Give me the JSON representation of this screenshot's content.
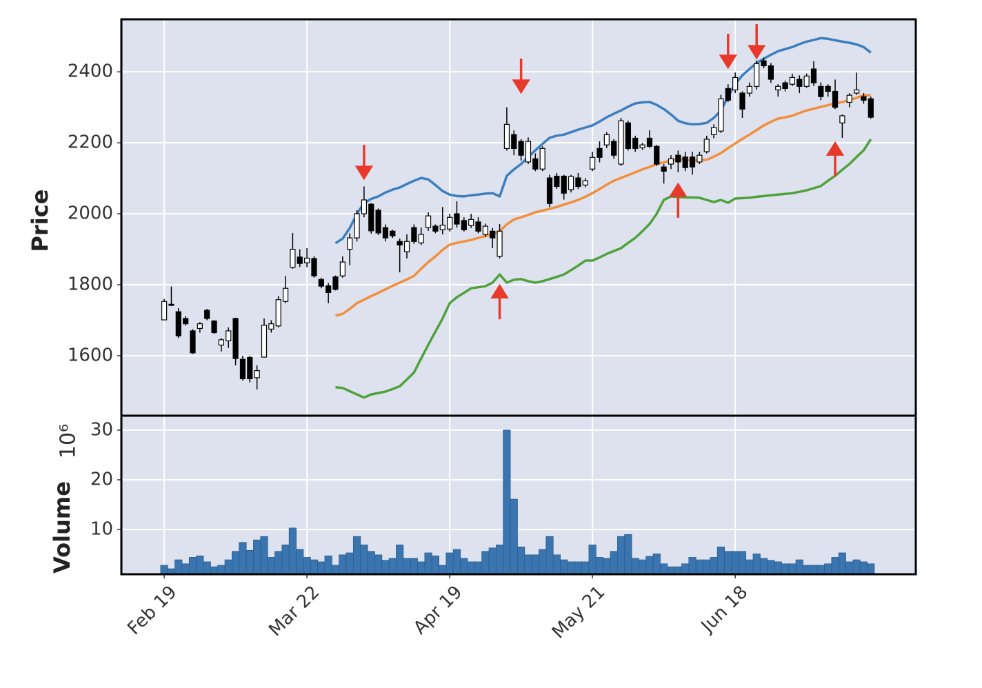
{
  "chart_data": {
    "type": "candlestick",
    "categories": [
      "Feb 19",
      null,
      null,
      null,
      null,
      null,
      null,
      null,
      null,
      null,
      null,
      null,
      null,
      null,
      null,
      null,
      null,
      null,
      null,
      null,
      "Mar 22",
      null,
      null,
      null,
      null,
      null,
      null,
      null,
      null,
      null,
      null,
      null,
      null,
      null,
      null,
      null,
      null,
      null,
      null,
      null,
      "Apr 19",
      null,
      null,
      null,
      null,
      null,
      null,
      null,
      null,
      null,
      null,
      null,
      null,
      null,
      null,
      null,
      null,
      null,
      null,
      null,
      "May 21",
      null,
      null,
      null,
      null,
      null,
      null,
      null,
      null,
      null,
      null,
      null,
      null,
      null,
      null,
      null,
      null,
      null,
      null,
      null,
      "Jun 18",
      null,
      null,
      null,
      null,
      null,
      null,
      null,
      null,
      null,
      null,
      null,
      null,
      null,
      null,
      null,
      null,
      null,
      null,
      null
    ],
    "xlim": [
      -6,
      105.3
    ],
    "open": [
      1701,
      1745,
      1724,
      1705,
      1670,
      1677,
      1728,
      1698,
      1630,
      1642,
      1705,
      1590,
      1595,
      1538,
      1596,
      1675,
      1684,
      1753,
      1849,
      1878,
      1862,
      1874,
      1815,
      1797,
      1822,
      1825,
      1900,
      1932,
      2000,
      2027,
      2010,
      1961,
      1951,
      1922,
      1893,
      1961,
      1918,
      1961,
      1965,
      1955,
      1957,
      2000,
      1981,
      1967,
      1977,
      1942,
      1951,
      1880,
      2184,
      2223,
      2204,
      2146,
      2155,
      2126,
      2101,
      2106,
      2106,
      2068,
      2101,
      2081,
      2126,
      2184,
      2194,
      2204,
      2140,
      2256,
      2213,
      2186,
      2213,
      2190,
      2132,
      2140,
      2165,
      2160,
      2160,
      2146,
      2175,
      2223,
      2233,
      2353,
      2349,
      2340,
      2340,
      2359,
      2431,
      2417,
      2349,
      2369,
      2365,
      2379,
      2359,
      2408,
      2359,
      2359,
      2345,
      2256,
      2314,
      2340,
      2330,
      2324
    ],
    "high": [
      1760,
      1795,
      1734,
      1712,
      1675,
      1695,
      1732,
      1700,
      1650,
      1680,
      1707,
      1600,
      1600,
      1573,
      1705,
      1700,
      1768,
      1825,
      1946,
      1900,
      1903,
      1880,
      1820,
      1805,
      1826,
      1880,
      1945,
      2010,
      2077,
      2030,
      2015,
      1970,
      1955,
      1930,
      1942,
      1970,
      1961,
      2004,
      1970,
      2019,
      2000,
      2035,
      1990,
      2000,
      1990,
      1972,
      1960,
      1971,
      2300,
      2235,
      2210,
      2215,
      2170,
      2190,
      2110,
      2115,
      2110,
      2110,
      2115,
      2100,
      2175,
      2204,
      2230,
      2210,
      2270,
      2262,
      2220,
      2200,
      2235,
      2194,
      2140,
      2165,
      2178,
      2175,
      2175,
      2175,
      2220,
      2252,
      2335,
      2365,
      2398,
      2345,
      2370,
      2432,
      2440,
      2425,
      2365,
      2375,
      2395,
      2390,
      2395,
      2430,
      2370,
      2365,
      2378,
      2280,
      2340,
      2398,
      2340,
      2330
    ],
    "low": [
      1700,
      1740,
      1650,
      1685,
      1605,
      1665,
      1700,
      1662,
      1612,
      1622,
      1573,
      1530,
      1525,
      1505,
      1595,
      1665,
      1680,
      1748,
      1845,
      1850,
      1849,
      1820,
      1790,
      1748,
      1784,
      1820,
      1855,
      1922,
      1990,
      1944,
      1940,
      1922,
      1932,
      1835,
      1874,
      1915,
      1912,
      1952,
      1945,
      1942,
      1950,
      1961,
      1950,
      1960,
      1945,
      1935,
      1903,
      1874,
      2178,
      2165,
      2150,
      2140,
      2120,
      2120,
      2019,
      2070,
      2040,
      2060,
      2070,
      2075,
      2120,
      2145,
      2185,
      2155,
      2135,
      2178,
      2175,
      2180,
      2185,
      2135,
      2085,
      2126,
      2117,
      2120,
      2110,
      2140,
      2170,
      2213,
      2228,
      2315,
      2340,
      2270,
      2330,
      2350,
      2410,
      2369,
      2330,
      2345,
      2360,
      2340,
      2355,
      2360,
      2320,
      2330,
      2295,
      2214,
      2300,
      2335,
      2310,
      2268
    ],
    "close": [
      1753,
      1742,
      1656,
      1690,
      1608,
      1690,
      1705,
      1665,
      1645,
      1670,
      1592,
      1535,
      1535,
      1558,
      1686,
      1690,
      1758,
      1790,
      1900,
      1860,
      1875,
      1825,
      1796,
      1778,
      1787,
      1864,
      1932,
      2000,
      2039,
      1952,
      1946,
      1932,
      1938,
      1912,
      1922,
      1922,
      1942,
      1994,
      1951,
      1968,
      1990,
      1971,
      1955,
      1984,
      1951,
      1965,
      1932,
      1951,
      2252,
      2184,
      2165,
      2204,
      2126,
      2184,
      2029,
      2077,
      2058,
      2105,
      2077,
      2093,
      2159,
      2159,
      2223,
      2165,
      2262,
      2184,
      2184,
      2194,
      2190,
      2140,
      2120,
      2155,
      2146,
      2130,
      2132,
      2165,
      2210,
      2243,
      2324,
      2320,
      2384,
      2295,
      2359,
      2423,
      2417,
      2379,
      2359,
      2353,
      2384,
      2359,
      2388,
      2369,
      2330,
      2345,
      2300,
      2276,
      2334,
      2349,
      2320,
      2272
    ],
    "up_color": "#ffffff",
    "down_color": "#000000",
    "series": [
      {
        "color": "#3d7ebf",
        "values": [
          null,
          null,
          null,
          null,
          null,
          null,
          null,
          null,
          null,
          null,
          null,
          null,
          null,
          null,
          null,
          null,
          null,
          null,
          null,
          null,
          null,
          null,
          null,
          null,
          1917,
          1930,
          1960,
          2000,
          2030,
          2042,
          2049,
          2060,
          2068,
          2074,
          2084,
          2093,
          2101,
          2097,
          2081,
          2064,
          2054,
          2050,
          2049,
          2052,
          2054,
          2057,
          2058,
          2049,
          2107,
          2125,
          2140,
          2160,
          2179,
          2197,
          2214,
          2220,
          2223,
          2230,
          2237,
          2243,
          2249,
          2260,
          2272,
          2282,
          2291,
          2302,
          2311,
          2314,
          2315,
          2307,
          2295,
          2280,
          2262,
          2255,
          2252,
          2253,
          2256,
          2270,
          2291,
          2330,
          2365,
          2390,
          2408,
          2425,
          2437,
          2448,
          2458,
          2464,
          2470,
          2478,
          2485,
          2490,
          2495,
          2493,
          2489,
          2485,
          2482,
          2477,
          2470,
          2454
        ]
      },
      {
        "color": "#f28e3c",
        "values": [
          null,
          null,
          null,
          null,
          null,
          null,
          null,
          null,
          null,
          null,
          null,
          null,
          null,
          null,
          null,
          null,
          null,
          null,
          null,
          null,
          null,
          null,
          null,
          null,
          1713,
          1718,
          1732,
          1748,
          1758,
          1768,
          1777,
          1787,
          1797,
          1806,
          1815,
          1825,
          1845,
          1864,
          1880,
          1898,
          1913,
          1918,
          1922,
          1926,
          1932,
          1937,
          1942,
          1951,
          1970,
          1984,
          1990,
          1997,
          2004,
          2009,
          2014,
          2019,
          2026,
          2032,
          2039,
          2048,
          2058,
          2070,
          2082,
          2093,
          2101,
          2109,
          2117,
          2125,
          2132,
          2140,
          2145,
          2150,
          2155,
          2152,
          2150,
          2151,
          2152,
          2161,
          2171,
          2185,
          2198,
          2211,
          2223,
          2236,
          2249,
          2259,
          2268,
          2272,
          2276,
          2284,
          2291,
          2296,
          2301,
          2306,
          2311,
          2315,
          2320,
          2327,
          2334,
          2334
        ]
      },
      {
        "color": "#4ea23b",
        "values": [
          null,
          null,
          null,
          null,
          null,
          null,
          null,
          null,
          null,
          null,
          null,
          null,
          null,
          null,
          null,
          null,
          null,
          null,
          null,
          null,
          null,
          null,
          null,
          null,
          1511,
          1509,
          1500,
          1491,
          1482,
          1491,
          1495,
          1499,
          1506,
          1514,
          1533,
          1553,
          1592,
          1631,
          1668,
          1705,
          1748,
          1765,
          1777,
          1790,
          1793,
          1796,
          1806,
          1829,
          1806,
          1814,
          1816,
          1810,
          1806,
          1810,
          1816,
          1822,
          1829,
          1841,
          1854,
          1868,
          1868,
          1877,
          1887,
          1895,
          1903,
          1918,
          1932,
          1951,
          1971,
          2000,
          2039,
          2049,
          2047,
          2046,
          2046,
          2045,
          2039,
          2033,
          2039,
          2031,
          2043,
          2044,
          2045,
          2048,
          2050,
          2052,
          2054,
          2056,
          2058,
          2062,
          2066,
          2072,
          2078,
          2093,
          2107,
          2124,
          2140,
          2160,
          2179,
          2210
        ]
      }
    ],
    "sell_markers": {
      "color": "#e8392b",
      "values": [
        null,
        null,
        null,
        null,
        null,
        null,
        null,
        null,
        null,
        null,
        null,
        null,
        null,
        null,
        null,
        null,
        null,
        null,
        null,
        null,
        null,
        null,
        null,
        null,
        null,
        null,
        null,
        null,
        2101,
        null,
        null,
        null,
        null,
        null,
        null,
        null,
        null,
        null,
        null,
        null,
        null,
        null,
        null,
        null,
        null,
        null,
        null,
        null,
        null,
        null,
        2344,
        null,
        null,
        null,
        null,
        null,
        null,
        null,
        null,
        null,
        null,
        null,
        null,
        null,
        null,
        null,
        null,
        null,
        null,
        null,
        null,
        null,
        null,
        null,
        null,
        null,
        null,
        null,
        null,
        2414,
        null,
        null,
        null,
        2441,
        null,
        null,
        null,
        null,
        null,
        null,
        null,
        null,
        null,
        null,
        null,
        null,
        null,
        null,
        null,
        null
      ]
    },
    "buy_markers": {
      "color": "#e8392b",
      "values": [
        null,
        null,
        null,
        null,
        null,
        null,
        null,
        null,
        null,
        null,
        null,
        null,
        null,
        null,
        null,
        null,
        null,
        null,
        null,
        null,
        null,
        null,
        null,
        null,
        null,
        null,
        null,
        null,
        null,
        null,
        null,
        null,
        null,
        null,
        null,
        null,
        null,
        null,
        null,
        null,
        null,
        null,
        null,
        null,
        null,
        null,
        null,
        1796,
        null,
        null,
        null,
        null,
        null,
        null,
        null,
        null,
        null,
        null,
        null,
        null,
        null,
        null,
        null,
        null,
        null,
        null,
        null,
        null,
        null,
        null,
        null,
        null,
        2082,
        null,
        null,
        null,
        null,
        null,
        null,
        null,
        null,
        null,
        null,
        null,
        null,
        null,
        null,
        null,
        null,
        null,
        null,
        null,
        null,
        null,
        2198,
        null,
        null,
        null,
        null
      ]
    },
    "ylabel": "Price",
    "ylim": [
      1431,
      2548
    ],
    "yticks": [
      1600,
      1800,
      2000,
      2200,
      2400
    ],
    "grid": true,
    "volume_panel": {
      "ylabel": "Volume",
      "offset_label": "10⁶",
      "color": "#3a75b0",
      "ylim": [
        1,
        32.9
      ],
      "yticks": [
        10,
        20,
        30
      ],
      "values": [
        2.8,
        2.1,
        3.9,
        3.1,
        4.4,
        4.7,
        3.5,
        2.5,
        2.8,
        3.9,
        5.6,
        7.4,
        5.8,
        7.9,
        8.6,
        4.4,
        5.6,
        6.9,
        10.3,
        6.0,
        4.4,
        3.9,
        3.5,
        4.7,
        2.8,
        4.9,
        5.3,
        8.6,
        6.9,
        5.6,
        4.9,
        3.8,
        4.2,
        6.9,
        4.2,
        4.2,
        3.5,
        5.3,
        4.7,
        2.8,
        5.3,
        6.0,
        4.2,
        3.5,
        3.5,
        5.6,
        6.3,
        6.9,
        30,
        16.1,
        6.5,
        4.9,
        4.9,
        6.0,
        8.6,
        4.9,
        3.9,
        3.5,
        3.5,
        3.5,
        6.9,
        4.4,
        4.2,
        5.6,
        8.6,
        9.0,
        4.2,
        3.9,
        4.6,
        5.1,
        3.1,
        2.5,
        2.5,
        3.1,
        4.4,
        3.9,
        3.9,
        4.4,
        6.5,
        5.6,
        5.6,
        5.6,
        3.9,
        5.1,
        4.2,
        3.8,
        3.5,
        3.1,
        3.1,
        3.9,
        2.8,
        2.8,
        2.8,
        3.1,
        4.4,
        5.3,
        3.5,
        3.9,
        3.5,
        3.1
      ]
    }
  }
}
